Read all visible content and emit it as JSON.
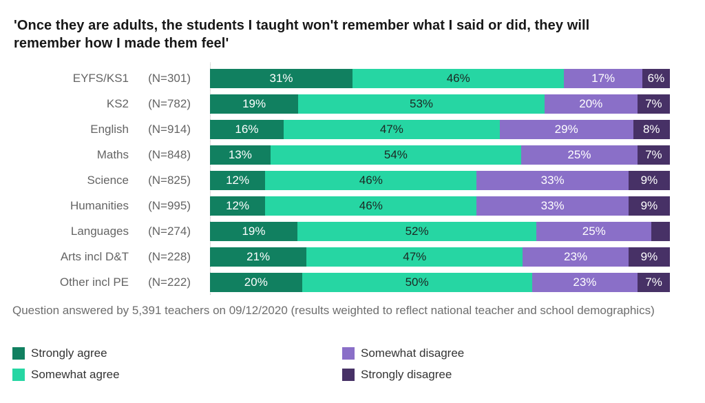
{
  "title": "'Once they are adults, the students I taught won't remember what I said or did, they will remember how I made them feel'",
  "footnote": "Question answered by 5,391 teachers on 09/12/2020 (results weighted to reflect national teacher and school demographics)",
  "colors": {
    "strongly_agree": "#118060",
    "somewhat_agree": "#26d6a3",
    "somewhat_disagree": "#8a6fc8",
    "strongly_disagree": "#473166",
    "label_on_dark": "#ffffff",
    "label_on_teal": "#1c2723",
    "row_label_gray": "#646464",
    "axis_dotted_gray": "#b9b9b9"
  },
  "legend": {
    "items": [
      {
        "label": "Strongly agree",
        "color": "#118060"
      },
      {
        "label": "Somewhat disagree",
        "color": "#8a6fc8"
      },
      {
        "label": "Somewhat agree",
        "color": "#26d6a3"
      },
      {
        "label": "Strongly disagree",
        "color": "#473166"
      }
    ]
  },
  "chart_data": {
    "type": "bar",
    "stacked": true,
    "orientation": "horizontal",
    "xlim": [
      0,
      100
    ],
    "grid": false,
    "legend_position": "bottom",
    "categories": [
      "EYFS/KS1",
      "KS2",
      "English",
      "Maths",
      "Science",
      "Humanities",
      "Languages",
      "Arts incl D&T",
      "Other incl PE"
    ],
    "n_labels": [
      "(N=301)",
      "(N=782)",
      "(N=914)",
      "(N=848)",
      "(N=825)",
      "(N=995)",
      "(N=274)",
      "(N=228)",
      "(N=222)"
    ],
    "series": [
      {
        "name": "Strongly agree",
        "color": "#118060",
        "label_color": "#ffffff",
        "values": [
          31,
          19,
          16,
          13,
          12,
          12,
          19,
          21,
          20
        ],
        "labels": [
          "31%",
          "19%",
          "16%",
          "13%",
          "12%",
          "12%",
          "19%",
          "21%",
          "20%"
        ]
      },
      {
        "name": "Somewhat agree",
        "color": "#26d6a3",
        "label_color": "#1c2723",
        "values": [
          46,
          53,
          47,
          54,
          46,
          46,
          52,
          47,
          50
        ],
        "labels": [
          "46%",
          "53%",
          "47%",
          "54%",
          "46%",
          "46%",
          "52%",
          "47%",
          "50%"
        ]
      },
      {
        "name": "Somewhat disagree",
        "color": "#8a6fc8",
        "label_color": "#ffffff",
        "values": [
          17,
          20,
          29,
          25,
          33,
          33,
          25,
          23,
          23
        ],
        "labels": [
          "17%",
          "20%",
          "29%",
          "25%",
          "33%",
          "33%",
          "25%",
          "23%",
          "23%"
        ]
      },
      {
        "name": "Strongly disagree",
        "color": "#473166",
        "label_color": "#ffffff",
        "values": [
          6,
          7,
          8,
          7,
          9,
          9,
          4,
          9,
          7
        ],
        "labels": [
          "6%",
          "7%",
          "8%",
          "7%",
          "9%",
          "9%",
          "",
          "9%",
          "7%"
        ]
      }
    ]
  }
}
